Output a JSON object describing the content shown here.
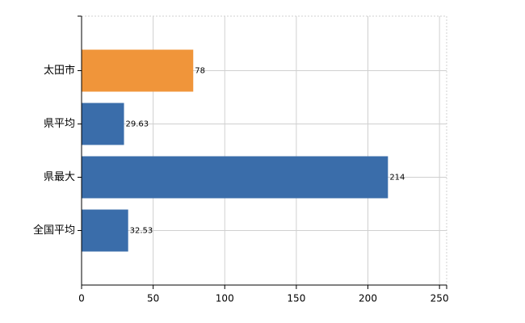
{
  "chart_data": {
    "type": "bar",
    "orientation": "horizontal",
    "categories": [
      "太田市",
      "県平均",
      "県最大",
      "全国平均"
    ],
    "values": [
      78,
      29.63,
      214,
      32.53
    ],
    "colors": [
      "#f0953a",
      "#3a6daa",
      "#3a6daa",
      "#3a6daa"
    ],
    "xlim": [
      0,
      255
    ],
    "xticks": [
      0,
      50,
      100,
      150,
      200,
      250
    ],
    "grid": true
  }
}
